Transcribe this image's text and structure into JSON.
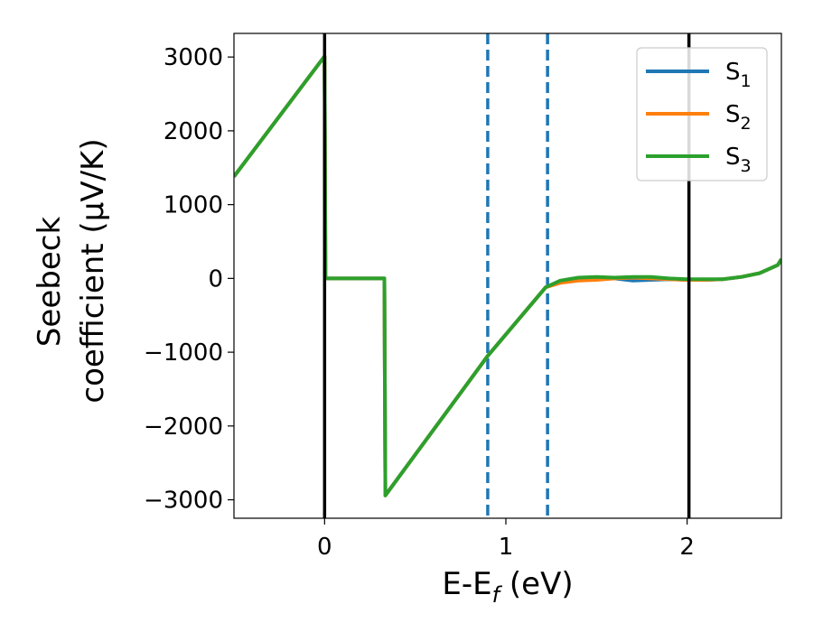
{
  "chart_data": {
    "type": "line",
    "xlabel": "E-E",
    "xlabel_sub": "f",
    "xlabel_unit": " (eV)",
    "ylabel_line1": "Seebeck",
    "ylabel_line2": "coefficient  (μV/K)",
    "xlim": [
      -0.5,
      2.52
    ],
    "ylim": [
      -3250,
      3320
    ],
    "xticks": [
      0,
      1,
      2
    ],
    "xtick_labels": [
      "0",
      "1",
      "2"
    ],
    "yticks": [
      -3000,
      -2000,
      -1000,
      0,
      1000,
      2000,
      3000
    ],
    "ytick_labels": [
      "−3000",
      "−2000",
      "−1000",
      "0",
      "1000",
      "2000",
      "3000"
    ],
    "grid": false,
    "legend_placement": "upper-right",
    "series": [
      {
        "name": "S",
        "subscript": "1",
        "color": "#1f77b4",
        "x": [
          -0.5,
          0.0,
          0.005,
          0.33,
          0.335,
          0.9,
          1.22,
          1.3,
          1.4,
          1.5,
          1.6,
          1.7,
          1.8,
          1.9,
          2.0,
          2.1,
          2.2,
          2.3,
          2.4,
          2.5,
          2.52
        ],
        "y": [
          1380,
          3010,
          0,
          0,
          -2940,
          -1050,
          -120,
          -40,
          0,
          10,
          0,
          -30,
          -20,
          -10,
          -20,
          -20,
          -10,
          20,
          70,
          180,
          260
        ]
      },
      {
        "name": "S",
        "subscript": "2",
        "color": "#ff7f0e",
        "x": [
          -0.5,
          0.0,
          0.005,
          0.33,
          0.335,
          0.9,
          1.22,
          1.3,
          1.4,
          1.5,
          1.6,
          1.7,
          1.8,
          1.9,
          2.0,
          2.1,
          2.2,
          2.3,
          2.4,
          2.5,
          2.52
        ],
        "y": [
          1380,
          3010,
          0,
          0,
          -2940,
          -1050,
          -120,
          -60,
          -30,
          -20,
          0,
          10,
          0,
          -10,
          -20,
          -20,
          -10,
          20,
          70,
          180,
          260
        ]
      },
      {
        "name": "S",
        "subscript": "3",
        "color": "#2ca02c",
        "x": [
          -0.5,
          0.0,
          0.005,
          0.33,
          0.335,
          0.9,
          1.22,
          1.3,
          1.4,
          1.5,
          1.6,
          1.7,
          1.8,
          1.9,
          2.0,
          2.1,
          2.2,
          2.3,
          2.4,
          2.5,
          2.52
        ],
        "y": [
          1380,
          3010,
          0,
          0,
          -2940,
          -1050,
          -120,
          -30,
          10,
          20,
          10,
          20,
          20,
          0,
          -10,
          -10,
          -10,
          20,
          70,
          180,
          260
        ]
      }
    ],
    "vlines_solid": [
      0.0,
      2.01
    ],
    "vlines_solid_color": "#000000",
    "vlines_dashed": [
      0.9,
      1.23
    ],
    "vlines_dashed_color": "#1f77b4"
  }
}
